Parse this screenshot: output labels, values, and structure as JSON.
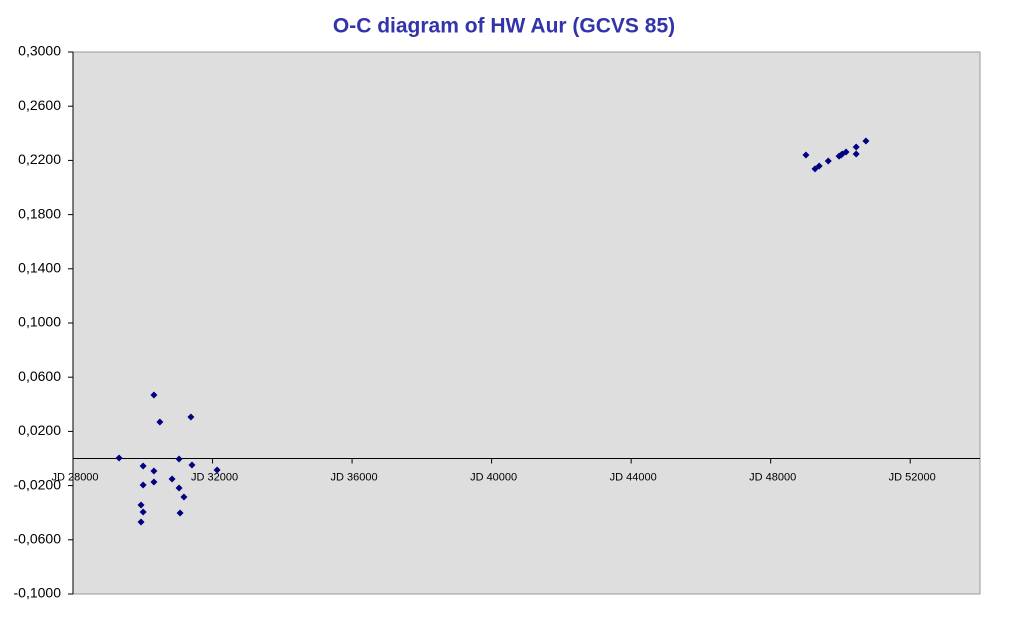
{
  "chart_data": {
    "type": "scatter",
    "title": "O-C diagram of HW Aur  (GCVS 85)",
    "color": "#000080",
    "x": [
      29320,
      30010,
      30010,
      29950,
      30010,
      29950,
      30320,
      30490,
      30320,
      30320,
      30840,
      31040,
      31040,
      31180,
      31070,
      31380,
      31410,
      32130,
      49010,
      49270,
      49390,
      49650,
      49960,
      50050,
      50160,
      50450,
      50450,
      50730,
      50020
    ],
    "values": [
      0.0004,
      -0.0055,
      -0.0196,
      -0.0343,
      -0.0395,
      -0.0469,
      0.0469,
      0.0269,
      -0.0092,
      -0.0173,
      -0.0151,
      -0.0004,
      -0.0218,
      -0.0284,
      -0.0402,
      0.0306,
      -0.0048,
      -0.0085,
      0.224,
      0.2137,
      0.2159,
      0.2196,
      0.2232,
      0.2247,
      0.2262,
      0.2299,
      0.2247,
      0.2343,
      0.224
    ],
    "xlim": [
      28000,
      54000
    ],
    "xticks": [
      {
        "value": 28000,
        "label": "JD 28000"
      },
      {
        "value": 32000,
        "label": "JD 32000"
      },
      {
        "value": 36000,
        "label": "JD 36000"
      },
      {
        "value": 40000,
        "label": "JD 40000"
      },
      {
        "value": 44000,
        "label": "JD 44000"
      },
      {
        "value": 48000,
        "label": "JD 48000"
      },
      {
        "value": 52000,
        "label": "JD 52000"
      }
    ],
    "ylim": [
      -0.1,
      0.3
    ],
    "yticks": [
      {
        "value": -0.1,
        "label": "-0,1000"
      },
      {
        "value": -0.06,
        "label": "-0,0600"
      },
      {
        "value": -0.02,
        "label": "-0,0200"
      },
      {
        "value": 0.02,
        "label": "0,0200"
      },
      {
        "value": 0.06,
        "label": "0,0600"
      },
      {
        "value": 0.1,
        "label": "0,1000"
      },
      {
        "value": 0.14,
        "label": "0,1400"
      },
      {
        "value": 0.18,
        "label": "0,1800"
      },
      {
        "value": 0.22,
        "label": "0,2200"
      },
      {
        "value": 0.26,
        "label": "0,2600"
      },
      {
        "value": 0.3,
        "label": "0,3000"
      }
    ],
    "grid": false
  }
}
